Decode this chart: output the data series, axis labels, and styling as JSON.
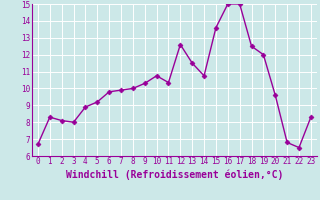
{
  "x": [
    0,
    1,
    2,
    3,
    4,
    5,
    6,
    7,
    8,
    9,
    10,
    11,
    12,
    13,
    14,
    15,
    16,
    17,
    18,
    19,
    20,
    21,
    22,
    23
  ],
  "y": [
    6.7,
    8.3,
    8.1,
    8.0,
    8.9,
    9.2,
    9.8,
    9.9,
    10.0,
    10.3,
    10.75,
    10.35,
    12.6,
    11.5,
    10.75,
    13.6,
    15.0,
    15.0,
    12.5,
    12.0,
    9.6,
    6.8,
    6.5,
    8.3
  ],
  "line_color": "#990099",
  "marker": "D",
  "marker_size": 2.5,
  "bg_color": "#cce8e8",
  "grid_color": "#ffffff",
  "xlabel": "Windchill (Refroidissement éolien,°C)",
  "ylim": [
    6,
    15
  ],
  "xlim_min": -0.5,
  "xlim_max": 23.5,
  "yticks": [
    6,
    7,
    8,
    9,
    10,
    11,
    12,
    13,
    14,
    15
  ],
  "xticks": [
    0,
    1,
    2,
    3,
    4,
    5,
    6,
    7,
    8,
    9,
    10,
    11,
    12,
    13,
    14,
    15,
    16,
    17,
    18,
    19,
    20,
    21,
    22,
    23
  ],
  "tick_label_fontsize": 5.5,
  "xlabel_fontsize": 7.0,
  "line_width": 1.0,
  "spine_color": "#990099"
}
